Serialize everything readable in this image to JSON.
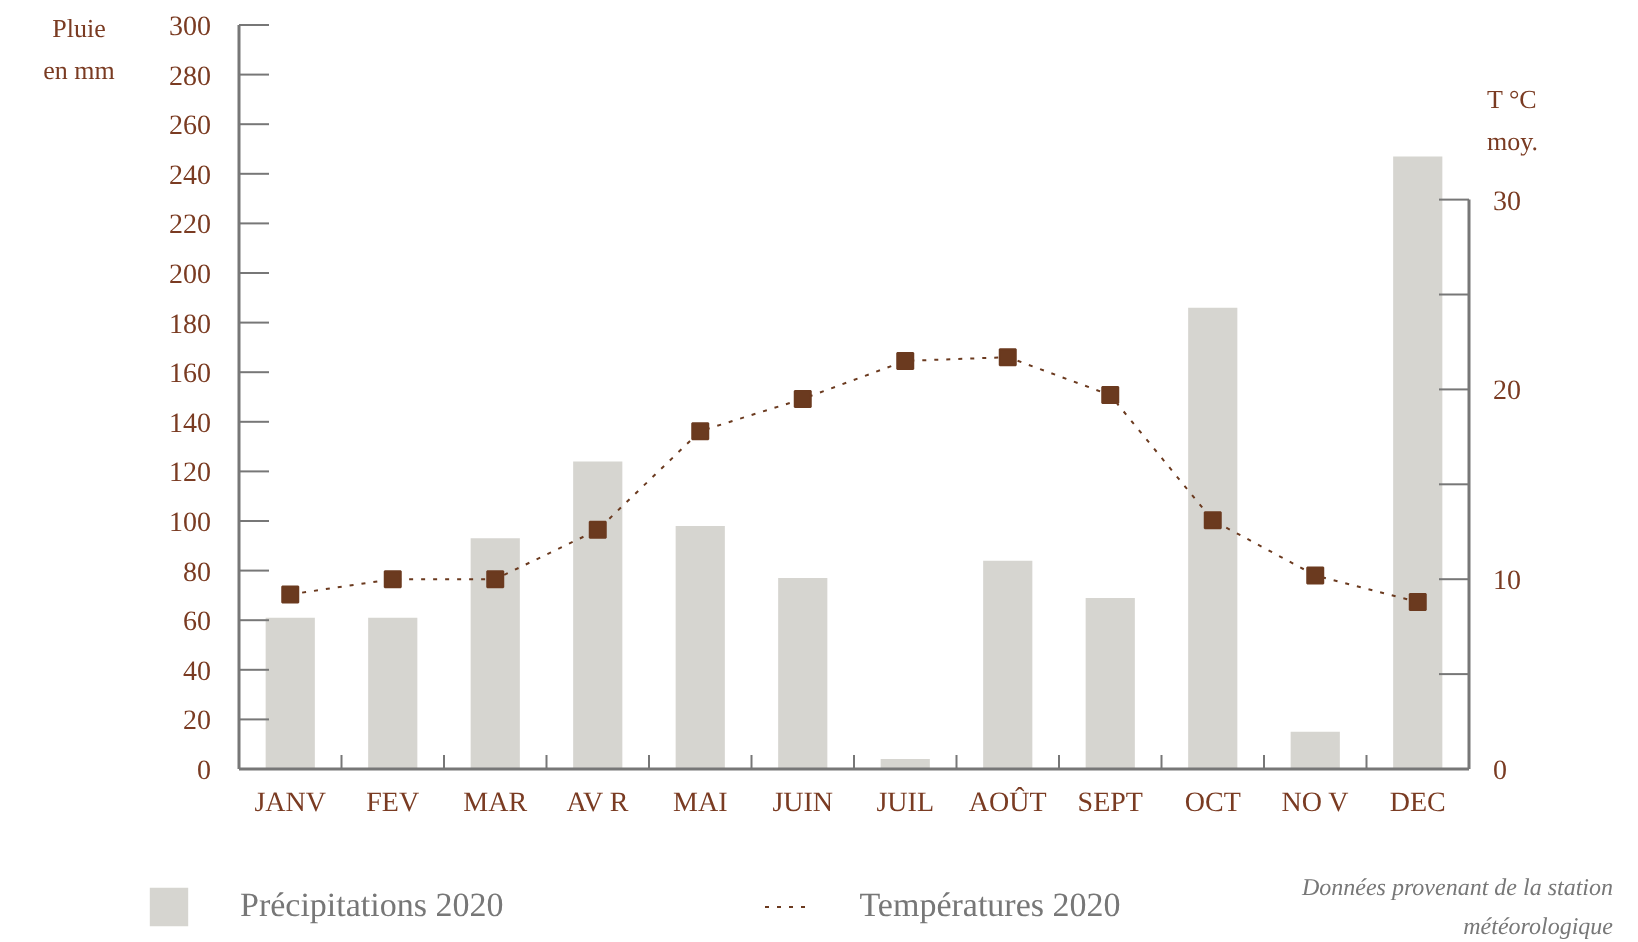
{
  "chart_data": {
    "type": "bar",
    "categories": [
      "JANV",
      "FEV",
      "MAR",
      "AV R",
      "MAI",
      "JUIN",
      "JUIL",
      "AOÛT",
      "SEPT",
      "OCT",
      "NO V",
      "DEC"
    ],
    "series": [
      {
        "name": "Précipitations 2020",
        "color": "#d6d5d0",
        "values": [
          61,
          61,
          93,
          124,
          98,
          77,
          4,
          84,
          69,
          186,
          15,
          247
        ]
      },
      {
        "name": "Températures 2020",
        "type": "line",
        "axis": "y2",
        "color": "#6b3a1f",
        "marker": "square",
        "line_style": "dotted",
        "values": [
          9.2,
          10.0,
          10.0,
          12.6,
          17.8,
          19.5,
          21.5,
          21.7,
          19.7,
          13.1,
          10.2,
          8.8
        ]
      }
    ],
    "ylabel": "Pluie\nen mm",
    "y2label": "T °C\nmoy.",
    "ylim": [
      0,
      300
    ],
    "yticks": [
      0,
      20,
      40,
      60,
      80,
      100,
      120,
      140,
      160,
      180,
      200,
      220,
      240,
      260,
      280,
      300
    ],
    "y2lim": [
      0,
      39.2
    ],
    "y2ticks": [
      0,
      {
        "value": 5,
        "label": null
      },
      10,
      {
        "value": 15,
        "label": null
      },
      20,
      {
        "value": 25,
        "label": null
      },
      30
    ],
    "grid": false,
    "legend": "bottom",
    "annotations": [
      "Données provenant de la station\nmétéorologique"
    ]
  }
}
